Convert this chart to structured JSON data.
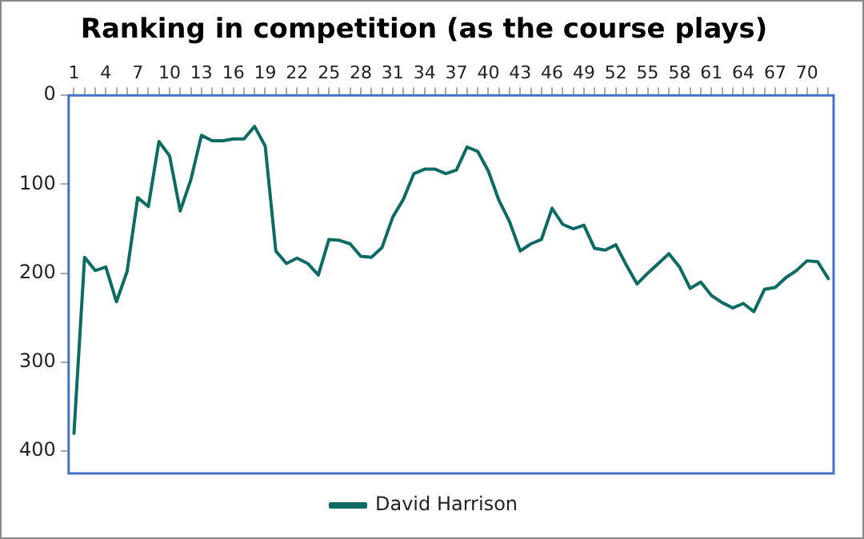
{
  "chart_data": {
    "type": "line",
    "title": "Ranking in competition (as the course plays)",
    "categories": [
      "1",
      null,
      null,
      "4",
      null,
      null,
      "7",
      null,
      null,
      "10",
      null,
      null,
      "13",
      null,
      null,
      "16",
      null,
      null,
      "19",
      null,
      null,
      "22",
      null,
      null,
      "25",
      null,
      null,
      "28",
      null,
      null,
      "31",
      null,
      null,
      "34",
      null,
      null,
      "37",
      null,
      null,
      "40",
      null,
      null,
      "43",
      null,
      null,
      "46",
      null,
      null,
      "49",
      null,
      null,
      "52",
      null,
      null,
      "55",
      null,
      null,
      "58",
      null,
      null,
      "61",
      null,
      null,
      "64",
      null,
      null,
      "67",
      null,
      null,
      "70",
      null,
      null
    ],
    "series": [
      {
        "name": "David Harrison",
        "color": "#0d6b63",
        "values": [
          380,
          182,
          197,
          193,
          232,
          198,
          115,
          125,
          52,
          68,
          130,
          95,
          45,
          51,
          51,
          49,
          49,
          35,
          57,
          175,
          189,
          183,
          189,
          202,
          162,
          163,
          167,
          181,
          182,
          171,
          137,
          117,
          88,
          83,
          83,
          88,
          84,
          58,
          63,
          85,
          118,
          142,
          175,
          167,
          162,
          127,
          145,
          150,
          146,
          172,
          174,
          168,
          191,
          212,
          200,
          189,
          178,
          193,
          217,
          210,
          225,
          233,
          239,
          234,
          243,
          218,
          216,
          205,
          197,
          186,
          187,
          206
        ]
      }
    ],
    "ylim": [
      425,
      0
    ],
    "yticks": [
      0,
      100,
      200,
      300,
      400
    ],
    "grid": false,
    "legend": "bottom",
    "marker": "none",
    "line_style": "solid"
  }
}
